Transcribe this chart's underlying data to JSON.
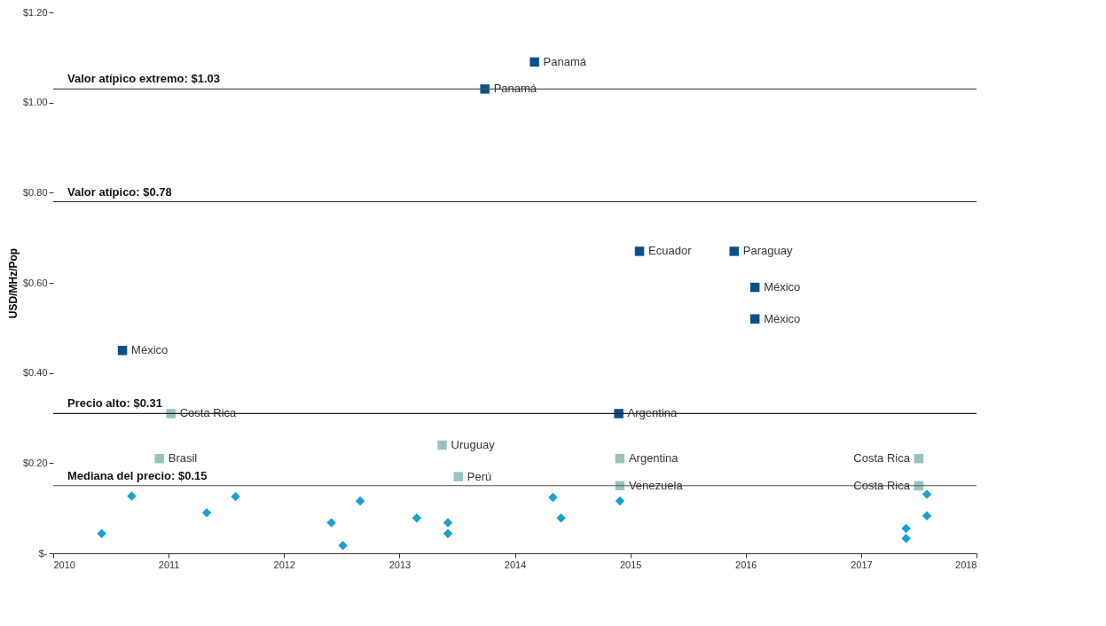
{
  "chart_data": {
    "type": "scatter",
    "ylabel": "USD/MHz/Pop",
    "xlim": [
      2010,
      2018
    ],
    "xticks": [
      2010,
      2011,
      2012,
      2013,
      2014,
      2015,
      2016,
      2017,
      2018
    ],
    "ylim": [
      0,
      1.2
    ],
    "yticks": [
      {
        "value": 0,
        "label": "$-"
      },
      {
        "value": 0.2,
        "label": "$0.20"
      },
      {
        "value": 0.4,
        "label": "$0.40"
      },
      {
        "value": 0.6,
        "label": "$0.60"
      },
      {
        "value": 0.8,
        "label": "$0.80"
      },
      {
        "value": 1.0,
        "label": "$1.00"
      },
      {
        "value": 1.2,
        "label": "$1.20"
      }
    ],
    "grid": false,
    "series": [
      {
        "color": "#0b4f8c",
        "marker": "square",
        "x": [
          2013.74,
          2014.17,
          2015.08,
          2015.9,
          2016.08,
          2016.08,
          2010.6,
          2014.9
        ],
        "values": [
          1.03,
          1.09,
          0.67,
          0.67,
          0.59,
          0.52,
          0.45,
          0.31
        ]
      },
      {
        "color": "#96c3bf",
        "marker": "square",
        "x": [
          2011.02,
          2010.92,
          2013.37,
          2013.51,
          2014.91,
          2014.91,
          2017.5,
          2017.5
        ],
        "values": [
          0.31,
          0.21,
          0.24,
          0.17,
          0.21,
          0.15,
          0.21,
          0.15
        ]
      },
      {
        "color": "#1aa0d2",
        "marker": "diamond",
        "x": [
          2010.42,
          2010.68,
          2011.33,
          2011.58,
          2012.41,
          2012.51,
          2012.66,
          2013.15,
          2013.42,
          2013.42,
          2014.33,
          2014.4,
          2014.91,
          2017.39,
          2017.39,
          2017.57,
          2017.57
        ],
        "values": [
          0.044,
          0.127,
          0.09,
          0.126,
          0.068,
          0.017,
          0.116,
          0.078,
          0.068,
          0.044,
          0.124,
          0.078,
          0.116,
          0.055,
          0.033,
          0.131,
          0.083
        ]
      }
    ],
    "annotations": [
      {
        "text": "Panamá",
        "x": 2013.74,
        "y": 1.03
      },
      {
        "text": "Panamá",
        "x": 2014.17,
        "y": 1.09
      },
      {
        "text": "Ecuador",
        "x": 2015.08,
        "y": 0.67
      },
      {
        "text": "Paraguay",
        "x": 2015.9,
        "y": 0.67
      },
      {
        "text": "México",
        "x": 2016.08,
        "y": 0.59
      },
      {
        "text": "México",
        "x": 2016.08,
        "y": 0.52
      },
      {
        "text": "México",
        "x": 2010.6,
        "y": 0.45
      },
      {
        "text": "Argentina",
        "x": 2014.9,
        "y": 0.31
      },
      {
        "text": "Costa Rica",
        "x": 2011.02,
        "y": 0.31
      },
      {
        "text": "Brasil",
        "x": 2010.92,
        "y": 0.21
      },
      {
        "text": "Uruguay",
        "x": 2013.37,
        "y": 0.24
      },
      {
        "text": "Perú",
        "x": 2013.51,
        "y": 0.17
      },
      {
        "text": "Argentina",
        "x": 2014.91,
        "y": 0.21
      },
      {
        "text": "Venezuela",
        "x": 2014.91,
        "y": 0.15
      },
      {
        "text": "Costa Rica",
        "x": 2017.5,
        "y": 0.21
      },
      {
        "text": "Costa Rica",
        "x": 2017.5,
        "y": 0.15
      }
    ],
    "ref_lines": [
      {
        "axis": "y",
        "value": 1.03,
        "label": "Valor atípico extremo: $1.03",
        "color": "#555555"
      },
      {
        "axis": "y",
        "value": 0.78,
        "label": "Valor atípico: $0.78",
        "color": "#222222"
      },
      {
        "axis": "y",
        "value": 0.31,
        "label": "Precio alto: $0.31",
        "color": "#222222"
      },
      {
        "axis": "y",
        "value": 0.15,
        "label": "Mediana del precio: $0.15",
        "color": "#555555"
      }
    ]
  }
}
